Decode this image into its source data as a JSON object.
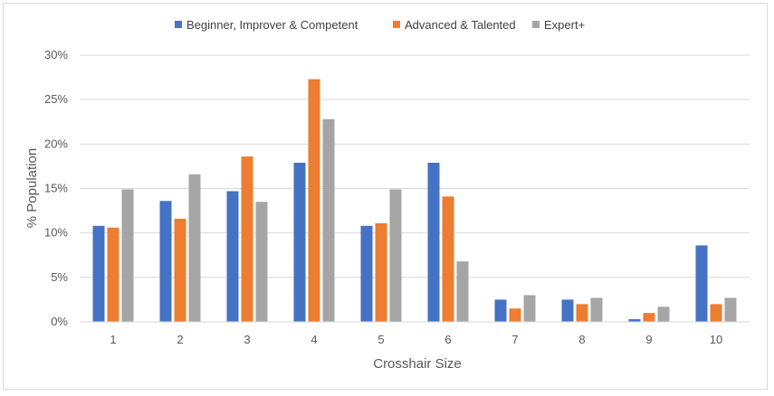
{
  "chart_data": {
    "type": "bar",
    "title": "",
    "xlabel": "Crosshair Size",
    "ylabel": "% Population",
    "ylim": [
      0,
      30
    ],
    "yticks": [
      "0%",
      "5%",
      "10%",
      "15%",
      "20%",
      "25%",
      "30%"
    ],
    "ytick_values": [
      0,
      5,
      10,
      15,
      20,
      25,
      30
    ],
    "grid": true,
    "legend_position": "top",
    "categories": [
      "1",
      "2",
      "3",
      "4",
      "5",
      "6",
      "7",
      "8",
      "9",
      "10"
    ],
    "series": [
      {
        "name": "Beginner, Improver & Competent",
        "color": "#4472c4",
        "values": [
          10.8,
          13.6,
          14.7,
          17.9,
          10.8,
          17.9,
          2.5,
          2.5,
          0.3,
          8.6
        ]
      },
      {
        "name": "Advanced & Talented",
        "color": "#ed7d31",
        "values": [
          10.6,
          11.6,
          18.6,
          27.3,
          11.1,
          14.1,
          1.5,
          2.0,
          1.0,
          2.0
        ]
      },
      {
        "name": "Expert+",
        "color": "#a5a5a5",
        "values": [
          14.9,
          16.6,
          13.5,
          22.8,
          14.9,
          6.8,
          3.0,
          2.7,
          1.7,
          2.7
        ]
      }
    ]
  }
}
